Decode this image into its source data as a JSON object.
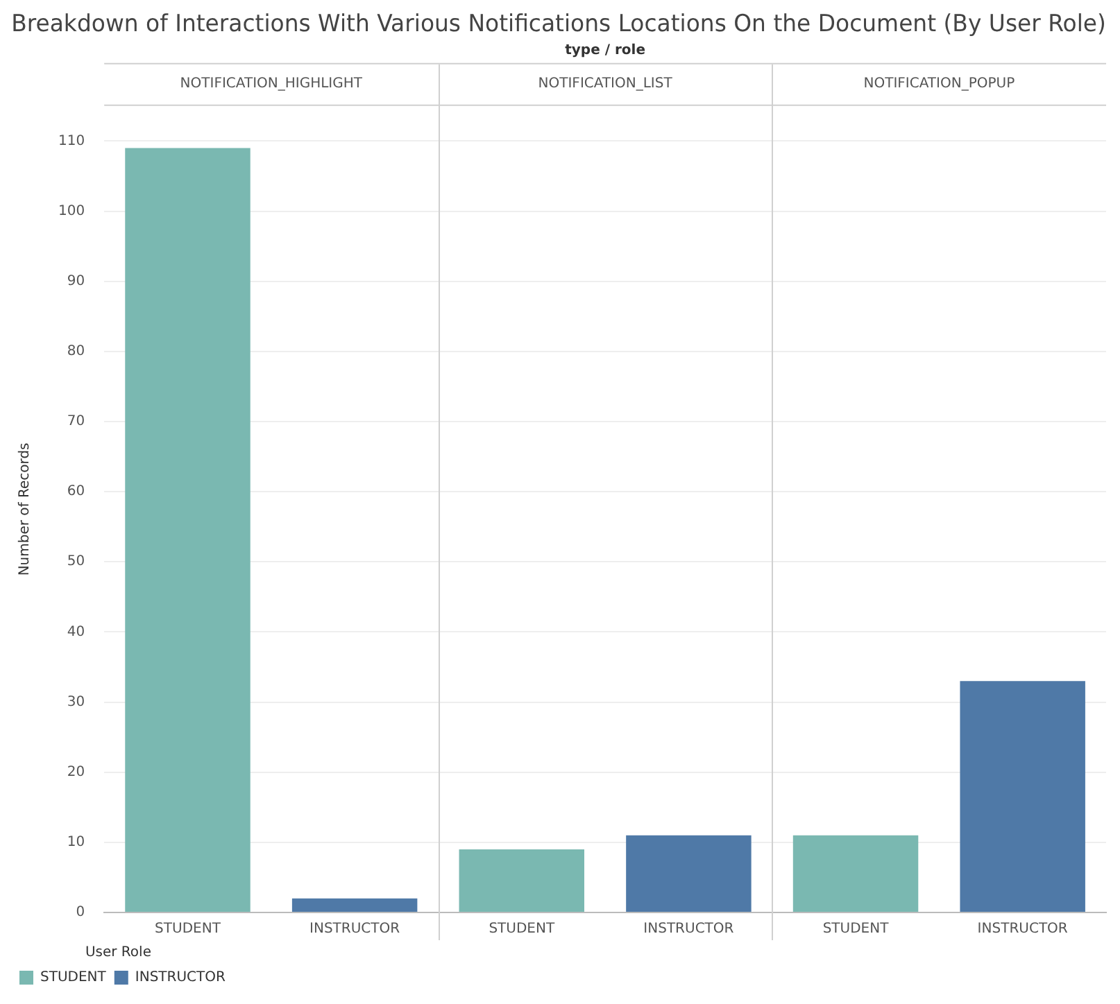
{
  "chart_data": {
    "type": "bar",
    "title": "Breakdown of Interactions With Various Notifications Locations On the Document (By User Role)",
    "ylabel": "Number of Records",
    "legend_title": "User Role",
    "categories": [
      "STUDENT",
      "INSTRUCTOR",
      "STUDENT",
      "INSTRUCTOR",
      "STUDENT",
      "INSTRUCTOR"
    ],
    "series": [
      {
        "name": "STUDENT",
        "color": "#7ab8b1",
        "values": [
          109,
          null,
          9,
          null,
          11,
          null
        ]
      },
      {
        "name": "INSTRUCTOR",
        "color": "#4f79a7",
        "values": [
          null,
          2,
          null,
          11,
          null,
          33
        ]
      }
    ],
    "annotations": [
      "type / role",
      "NOTIFICATION_HIGHLIGHT",
      "NOTIFICATION_LIST",
      "NOTIFICATION_POPUP"
    ],
    "ylim": [
      0,
      115
    ],
    "yticks": [
      0,
      10,
      20,
      30,
      40,
      50,
      60,
      70,
      80,
      90,
      100,
      110
    ],
    "grid": "y",
    "legend": "bottom left"
  }
}
